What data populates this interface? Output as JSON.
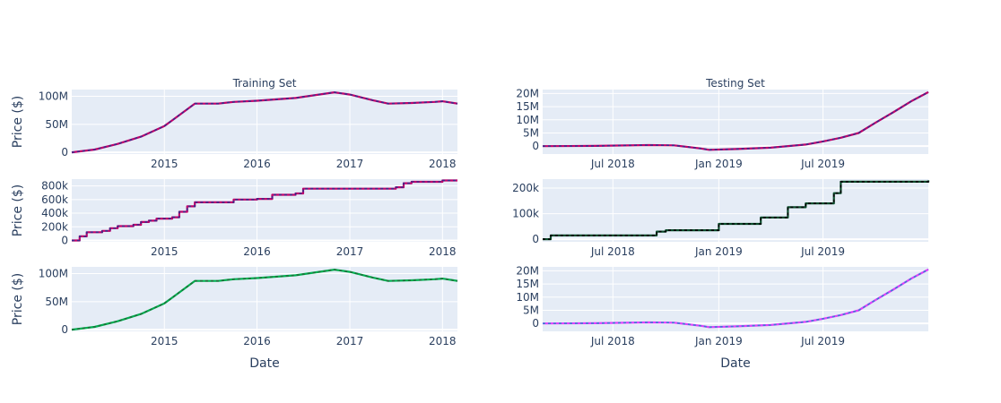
{
  "chart_data": [
    {
      "type": "line",
      "title": "Training Set",
      "xlabel": "",
      "ylabel": "Price ($)",
      "xlim": [
        "2014-01-01",
        "2018-03-01"
      ],
      "ylim": [
        -3000000,
        112000000
      ],
      "yticks": [
        {
          "v": 0,
          "t": "0"
        },
        {
          "v": 50000000,
          "t": "50M"
        },
        {
          "v": 100000000,
          "t": "100M"
        }
      ],
      "xticks": [
        {
          "d": "2015-01-01",
          "t": "2015"
        },
        {
          "d": "2016-01-01",
          "t": "2016"
        },
        {
          "d": "2017-01-01",
          "t": "2017"
        },
        {
          "d": "2018-01-01",
          "t": "2018"
        }
      ],
      "grid": true,
      "series": [
        {
          "color": "#c0006a",
          "dash_color": "#3a2a8c",
          "step": false,
          "points": [
            [
              "2014-01-01",
              0
            ],
            [
              "2014-04-01",
              5000000
            ],
            [
              "2014-07-01",
              15000000
            ],
            [
              "2014-10-01",
              28000000
            ],
            [
              "2015-01-01",
              47000000
            ],
            [
              "2015-02-01",
              57000000
            ],
            [
              "2015-05-01",
              87000000
            ],
            [
              "2015-08-01",
              87000000
            ],
            [
              "2015-10-01",
              90000000
            ],
            [
              "2016-01-01",
              92000000
            ],
            [
              "2016-06-01",
              97000000
            ],
            [
              "2016-09-01",
              103000000
            ],
            [
              "2016-11-01",
              107000000
            ],
            [
              "2017-01-01",
              103000000
            ],
            [
              "2017-04-01",
              93000000
            ],
            [
              "2017-06-01",
              87000000
            ],
            [
              "2017-09-01",
              88000000
            ],
            [
              "2017-12-01",
              90000000
            ],
            [
              "2018-01-01",
              91000000
            ],
            [
              "2018-03-01",
              87000000
            ]
          ]
        }
      ]
    },
    {
      "type": "line",
      "title": "Testing Set",
      "xlabel": "",
      "ylabel": "",
      "xlim": [
        "2018-03-01",
        "2019-12-31"
      ],
      "ylim": [
        -3000000,
        21500000
      ],
      "yticks": [
        {
          "v": 0,
          "t": "0"
        },
        {
          "v": 5000000,
          "t": "5M"
        },
        {
          "v": 10000000,
          "t": "10M"
        },
        {
          "v": 15000000,
          "t": "15M"
        },
        {
          "v": 20000000,
          "t": "20M"
        }
      ],
      "xticks": [
        {
          "d": "2018-07-01",
          "t": "Jul 2018"
        },
        {
          "d": "2019-01-01",
          "t": "Jan 2019"
        },
        {
          "d": "2019-07-01",
          "t": "Jul 2019"
        }
      ],
      "grid": true,
      "series": [
        {
          "color": "#c0006a",
          "dash_color": "#3a2a8c",
          "step": false,
          "points": [
            [
              "2018-03-01",
              0
            ],
            [
              "2018-06-01",
              100000
            ],
            [
              "2018-09-01",
              400000
            ],
            [
              "2018-10-15",
              300000
            ],
            [
              "2018-12-01",
              -900000
            ],
            [
              "2018-12-15",
              -1400000
            ],
            [
              "2019-02-01",
              -1100000
            ],
            [
              "2019-04-01",
              -600000
            ],
            [
              "2019-06-01",
              600000
            ],
            [
              "2019-07-01",
              1800000
            ],
            [
              "2019-08-01",
              3200000
            ],
            [
              "2019-09-01",
              5000000
            ],
            [
              "2019-10-01",
              9000000
            ],
            [
              "2019-11-01",
              13000000
            ],
            [
              "2019-12-01",
              17000000
            ],
            [
              "2019-12-31",
              20500000
            ]
          ]
        }
      ]
    },
    {
      "type": "line",
      "title": "",
      "xlabel": "",
      "ylabel": "Price ($)",
      "xlim": [
        "2014-01-01",
        "2018-03-01"
      ],
      "ylim": [
        -20000,
        900000
      ],
      "yticks": [
        {
          "v": 0,
          "t": "0"
        },
        {
          "v": 200000,
          "t": "200k"
        },
        {
          "v": 400000,
          "t": "400k"
        },
        {
          "v": 600000,
          "t": "600k"
        },
        {
          "v": 800000,
          "t": "800k"
        }
      ],
      "xticks": [
        {
          "d": "2015-01-01",
          "t": "2015"
        },
        {
          "d": "2016-01-01",
          "t": "2016"
        },
        {
          "d": "2017-01-01",
          "t": "2017"
        },
        {
          "d": "2018-01-01",
          "t": "2018"
        }
      ],
      "grid": true,
      "series": [
        {
          "color": "#c0006a",
          "dash_color": "#3a2a8c",
          "step": true,
          "points": [
            [
              "2014-01-01",
              0
            ],
            [
              "2014-02-01",
              60000
            ],
            [
              "2014-03-01",
              120000
            ],
            [
              "2014-05-01",
              140000
            ],
            [
              "2014-06-01",
              180000
            ],
            [
              "2014-07-01",
              210000
            ],
            [
              "2014-09-01",
              230000
            ],
            [
              "2014-10-01",
              270000
            ],
            [
              "2014-11-01",
              290000
            ],
            [
              "2014-12-01",
              320000
            ],
            [
              "2015-02-01",
              340000
            ],
            [
              "2015-03-01",
              420000
            ],
            [
              "2015-04-01",
              500000
            ],
            [
              "2015-05-01",
              560000
            ],
            [
              "2015-10-01",
              600000
            ],
            [
              "2016-01-01",
              610000
            ],
            [
              "2016-03-01",
              670000
            ],
            [
              "2016-06-01",
              690000
            ],
            [
              "2016-07-01",
              760000
            ],
            [
              "2017-07-01",
              780000
            ],
            [
              "2017-08-01",
              840000
            ],
            [
              "2017-09-01",
              860000
            ],
            [
              "2018-01-01",
              880000
            ],
            [
              "2018-03-01",
              880000
            ]
          ]
        }
      ]
    },
    {
      "type": "line",
      "title": "",
      "xlabel": "",
      "ylabel": "",
      "xlim": [
        "2018-03-01",
        "2019-12-31"
      ],
      "ylim": [
        -10000,
        235000
      ],
      "yticks": [
        {
          "v": 0,
          "t": "0"
        },
        {
          "v": 100000,
          "t": "100k"
        },
        {
          "v": 200000,
          "t": "200k"
        }
      ],
      "xticks": [
        {
          "d": "2018-07-01",
          "t": "Jul 2018"
        },
        {
          "d": "2019-01-01",
          "t": "Jan 2019"
        },
        {
          "d": "2019-07-01",
          "t": "Jul 2019"
        }
      ],
      "grid": true,
      "series": [
        {
          "color": "#0b4d2c",
          "dash_color": "#000000",
          "step": true,
          "points": [
            [
              "2018-03-01",
              0
            ],
            [
              "2018-03-15",
              15000
            ],
            [
              "2018-09-15",
              30000
            ],
            [
              "2018-10-01",
              35000
            ],
            [
              "2019-01-01",
              60000
            ],
            [
              "2019-03-15",
              85000
            ],
            [
              "2019-05-01",
              125000
            ],
            [
              "2019-06-01",
              140000
            ],
            [
              "2019-07-20",
              180000
            ],
            [
              "2019-08-01",
              225000
            ],
            [
              "2019-12-31",
              230000
            ]
          ]
        }
      ]
    },
    {
      "type": "line",
      "title": "",
      "xlabel": "Date",
      "ylabel": "Price ($)",
      "xlim": [
        "2014-01-01",
        "2018-03-01"
      ],
      "ylim": [
        -3000000,
        112000000
      ],
      "yticks": [
        {
          "v": 0,
          "t": "0"
        },
        {
          "v": 50000000,
          "t": "50M"
        },
        {
          "v": 100000000,
          "t": "100M"
        }
      ],
      "xticks": [
        {
          "d": "2015-01-01",
          "t": "2015"
        },
        {
          "d": "2016-01-01",
          "t": "2016"
        },
        {
          "d": "2017-01-01",
          "t": "2017"
        },
        {
          "d": "2018-01-01",
          "t": "2018"
        }
      ],
      "grid": true,
      "series": [
        {
          "color": "#00b050",
          "dash_color": "#1f6e3a",
          "step": false,
          "points": [
            [
              "2014-01-01",
              0
            ],
            [
              "2014-04-01",
              5000000
            ],
            [
              "2014-07-01",
              15000000
            ],
            [
              "2014-10-01",
              28000000
            ],
            [
              "2015-01-01",
              47000000
            ],
            [
              "2015-02-01",
              57000000
            ],
            [
              "2015-05-01",
              87000000
            ],
            [
              "2015-08-01",
              87000000
            ],
            [
              "2015-10-01",
              90000000
            ],
            [
              "2016-01-01",
              92000000
            ],
            [
              "2016-06-01",
              97000000
            ],
            [
              "2016-09-01",
              103000000
            ],
            [
              "2016-11-01",
              107000000
            ],
            [
              "2017-01-01",
              103000000
            ],
            [
              "2017-04-01",
              93000000
            ],
            [
              "2017-06-01",
              87000000
            ],
            [
              "2017-09-01",
              88000000
            ],
            [
              "2017-12-01",
              90000000
            ],
            [
              "2018-01-01",
              91000000
            ],
            [
              "2018-03-01",
              87000000
            ]
          ]
        }
      ]
    },
    {
      "type": "line",
      "title": "",
      "xlabel": "Date",
      "ylabel": "",
      "xlim": [
        "2018-03-01",
        "2019-12-31"
      ],
      "ylim": [
        -3000000,
        21500000
      ],
      "yticks": [
        {
          "v": 0,
          "t": "0"
        },
        {
          "v": 5000000,
          "t": "5M"
        },
        {
          "v": 10000000,
          "t": "10M"
        },
        {
          "v": 15000000,
          "t": "15M"
        },
        {
          "v": 20000000,
          "t": "20M"
        }
      ],
      "xticks": [
        {
          "d": "2018-07-01",
          "t": "Jul 2018"
        },
        {
          "d": "2019-01-01",
          "t": "Jan 2019"
        },
        {
          "d": "2019-07-01",
          "t": "Jul 2019"
        }
      ],
      "grid": true,
      "series": [
        {
          "color": "#e040fb",
          "dash_color": "#3a7bd5",
          "step": false,
          "points": [
            [
              "2018-03-01",
              0
            ],
            [
              "2018-06-01",
              100000
            ],
            [
              "2018-09-01",
              400000
            ],
            [
              "2018-10-15",
              300000
            ],
            [
              "2018-12-01",
              -900000
            ],
            [
              "2018-12-15",
              -1400000
            ],
            [
              "2019-02-01",
              -1100000
            ],
            [
              "2019-04-01",
              -600000
            ],
            [
              "2019-06-01",
              600000
            ],
            [
              "2019-07-01",
              1800000
            ],
            [
              "2019-08-01",
              3200000
            ],
            [
              "2019-09-01",
              5000000
            ],
            [
              "2019-10-01",
              9000000
            ],
            [
              "2019-11-01",
              13000000
            ],
            [
              "2019-12-01",
              17000000
            ],
            [
              "2019-12-31",
              20500000
            ]
          ]
        }
      ]
    }
  ]
}
